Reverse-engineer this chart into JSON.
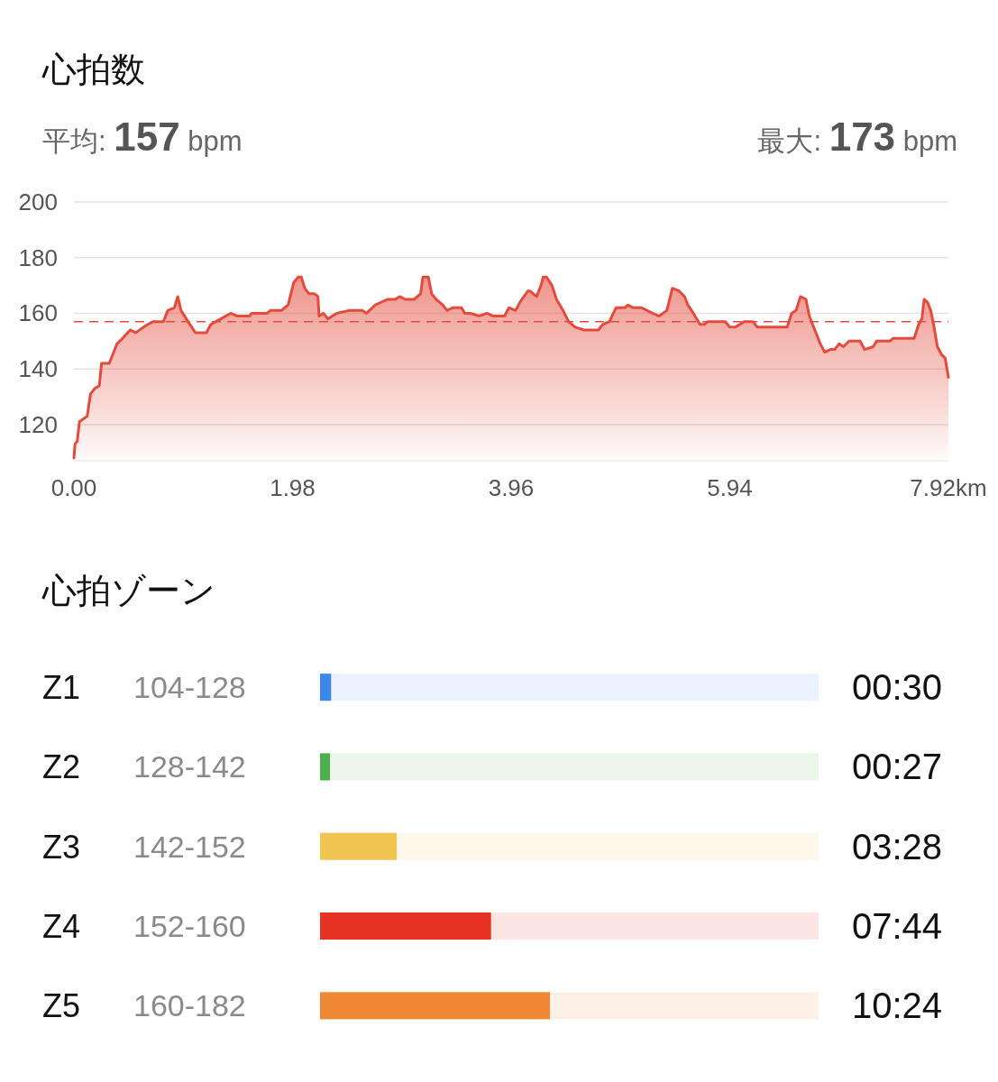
{
  "chart_data": [
    {
      "type": "area",
      "title": "心拍数",
      "annotations": [
        "平均: 157 bpm",
        "最大: 173 bpm"
      ],
      "x": [
        0.0,
        0.01,
        0.03,
        0.05,
        0.12,
        0.15,
        0.19,
        0.23,
        0.25,
        0.32,
        0.35,
        0.39,
        0.44,
        0.51,
        0.56,
        0.63,
        0.67,
        0.72,
        0.81,
        0.85,
        0.91,
        0.94,
        0.97,
        1.05,
        1.1,
        1.2,
        1.24,
        1.33,
        1.42,
        1.48,
        1.59,
        1.61,
        1.75,
        1.78,
        1.88,
        1.94,
        1.99,
        2.03,
        2.06,
        2.09,
        2.13,
        2.18,
        2.21,
        2.22,
        2.26,
        2.3,
        2.38,
        2.49,
        2.61,
        2.65,
        2.73,
        2.84,
        2.91,
        2.95,
        3.0,
        3.08,
        3.14,
        3.16,
        3.21,
        3.24,
        3.28,
        3.34,
        3.38,
        3.43,
        3.51,
        3.54,
        3.59,
        3.67,
        3.74,
        3.8,
        3.9,
        3.94,
        4.0,
        4.04,
        4.11,
        4.13,
        4.19,
        4.23,
        4.25,
        4.28,
        4.33,
        4.37,
        4.43,
        4.48,
        4.54,
        4.62,
        4.75,
        4.79,
        4.85,
        4.91,
        4.99,
        5.02,
        5.06,
        5.14,
        5.24,
        5.3,
        5.37,
        5.42,
        5.48,
        5.53,
        5.56,
        5.61,
        5.67,
        5.71,
        5.74,
        5.9,
        5.94,
        5.99,
        6.07,
        6.15,
        6.19,
        6.46,
        6.5,
        6.54,
        6.58,
        6.63,
        6.66,
        6.71,
        6.76,
        6.8,
        6.85,
        6.89,
        6.93,
        6.97,
        7.02,
        7.12,
        7.16,
        7.24,
        7.27,
        7.39,
        7.42,
        7.61,
        7.65,
        7.68,
        7.7,
        7.73,
        7.76,
        7.79,
        7.82,
        7.86,
        7.89,
        7.92
      ],
      "values": [
        108,
        113,
        114,
        121,
        123,
        131,
        133,
        134,
        142,
        142,
        145,
        149,
        151,
        154,
        153,
        155,
        156,
        157,
        157,
        161,
        162,
        166,
        161,
        156,
        153,
        153,
        156,
        158,
        160,
        159,
        159,
        160,
        160,
        161,
        161,
        163,
        171,
        173,
        173,
        169,
        167,
        167,
        166,
        159,
        160,
        158,
        160,
        161,
        161,
        160,
        163,
        165,
        165,
        166,
        165,
        165,
        167,
        173,
        173,
        167,
        165,
        163,
        161,
        162,
        162,
        160,
        160,
        159,
        160,
        159,
        159,
        162,
        161,
        164,
        168,
        168,
        166,
        170,
        173,
        173,
        170,
        165,
        161,
        157,
        155,
        154,
        154,
        156,
        157,
        162,
        162,
        163,
        162,
        162,
        160,
        159,
        161,
        169,
        168,
        166,
        163,
        160,
        156,
        156,
        157,
        157,
        155,
        155,
        157,
        157,
        155,
        155,
        160,
        161,
        166,
        165,
        159,
        154,
        149,
        146,
        147,
        147,
        149,
        148,
        150,
        150,
        147,
        148,
        150,
        150,
        151,
        151,
        156,
        158,
        165,
        164,
        161,
        155,
        148,
        145,
        144,
        137
      ],
      "color": "#e54b3c",
      "xlim": [
        0,
        7.92
      ],
      "xticks": [
        {
          "value": 0,
          "label": "0.00"
        },
        1.98,
        3.96,
        5.94,
        {
          "value": 7.92,
          "label": "7.92km"
        }
      ],
      "ylim": [
        107,
        200
      ],
      "yticks": [
        120,
        140,
        160,
        180,
        200
      ],
      "grid": "y",
      "ref_lines": [
        {
          "axis": "y",
          "value": 157,
          "color": "#e54b3c",
          "line_style": "dashed"
        }
      ]
    },
    {
      "type": "bar",
      "orientation": "horizontal",
      "title": "心拍ゾーン",
      "categories": [
        "Z1",
        "Z2",
        "Z3",
        "Z4",
        "Z5"
      ],
      "values": [
        30,
        27,
        208,
        464,
        624
      ],
      "colors": [
        "#3d87eb",
        "#4bb04a",
        "#f0c552",
        "#e53222",
        "#ef8833"
      ],
      "value_labels": [
        "00:30",
        "00:27",
        "03:28",
        "07:44",
        "10:24"
      ],
      "xlim": [
        0,
        1353
      ],
      "tick_labels": "y",
      "annotations": [
        "104-128",
        "128-142",
        "142-152",
        "152-160",
        "160-182"
      ]
    }
  ]
}
